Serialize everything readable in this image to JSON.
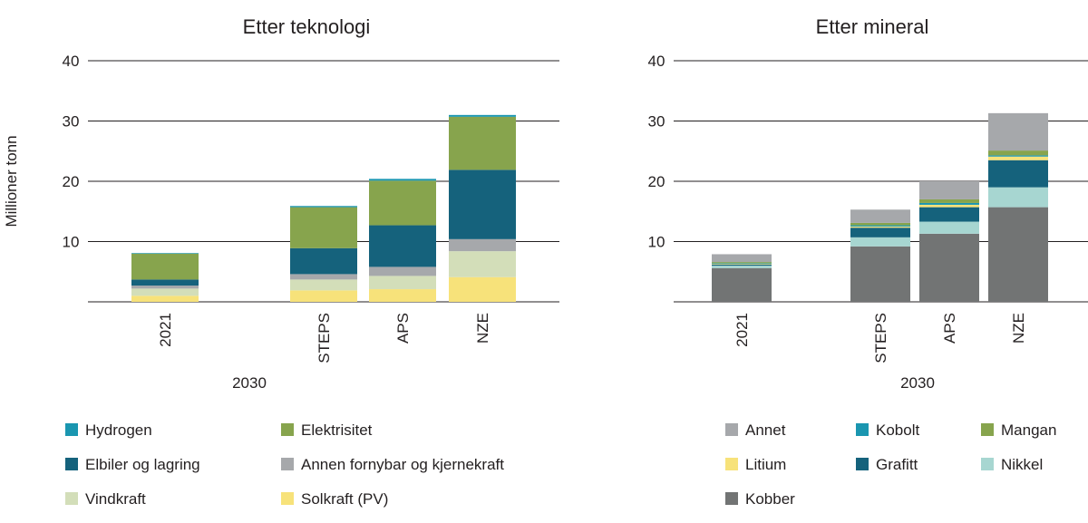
{
  "chart_data": [
    {
      "type": "bar",
      "stacked": true,
      "title": "Etter teknologi",
      "ylabel": "Millioner tonn",
      "yticks": [
        10,
        20,
        30,
        40
      ],
      "ylim": [
        0,
        40
      ],
      "categories": [
        "2021",
        "STEPS",
        "APS",
        "NZE"
      ],
      "group_label": "2030",
      "series": [
        {
          "name": "Solkraft (PV)",
          "color": "#f7e27a",
          "values": [
            1.0,
            1.9,
            2.1,
            4.1
          ]
        },
        {
          "name": "Vindkraft",
          "color": "#d3deb9",
          "values": [
            1.2,
            1.8,
            2.2,
            4.3
          ]
        },
        {
          "name": "Annen fornybar og kjernekraft",
          "color": "#a6a8ab",
          "values": [
            0.5,
            0.9,
            1.5,
            2.0
          ]
        },
        {
          "name": "Elbiler og lagring",
          "color": "#15627c",
          "values": [
            1.0,
            4.3,
            6.9,
            11.5
          ]
        },
        {
          "name": "Elektrisitet",
          "color": "#87a44d",
          "values": [
            4.3,
            6.8,
            7.4,
            8.8
          ]
        },
        {
          "name": "Hydrogen",
          "color": "#1a96b0",
          "values": [
            0.1,
            0.2,
            0.3,
            0.3
          ]
        }
      ],
      "legend": [
        {
          "name": "Hydrogen",
          "color": "#1a96b0"
        },
        {
          "name": "Elektrisitet",
          "color": "#87a44d"
        },
        {
          "name": "Elbiler og lagring",
          "color": "#15627c"
        },
        {
          "name": "Annen fornybar og kjernekraft",
          "color": "#a6a8ab"
        },
        {
          "name": "Vindkraft",
          "color": "#d3deb9"
        },
        {
          "name": "Solkraft (PV)",
          "color": "#f7e27a"
        }
      ]
    },
    {
      "type": "bar",
      "stacked": true,
      "title": "Etter mineral",
      "yticks": [
        10,
        20,
        30,
        40
      ],
      "ylim": [
        0,
        40
      ],
      "categories": [
        "2021",
        "STEPS",
        "APS",
        "NZE"
      ],
      "group_label": "2030",
      "series": [
        {
          "name": "Kobber",
          "color": "#727474",
          "values": [
            5.6,
            9.2,
            11.3,
            15.7
          ]
        },
        {
          "name": "Nikkel",
          "color": "#a7d6d1",
          "values": [
            0.4,
            1.5,
            2.0,
            3.3
          ]
        },
        {
          "name": "Grafitt",
          "color": "#15627c",
          "values": [
            0.2,
            1.6,
            2.4,
            4.5
          ]
        },
        {
          "name": "Litium",
          "color": "#f7e27a",
          "values": [
            0.1,
            0.2,
            0.4,
            0.6
          ]
        },
        {
          "name": "Kobolt",
          "color": "#1a96b0",
          "values": [
            0.1,
            0.2,
            0.3,
            0.2
          ]
        },
        {
          "name": "Mangan",
          "color": "#87a44d",
          "values": [
            0.2,
            0.4,
            0.6,
            0.8
          ]
        },
        {
          "name": "Annet",
          "color": "#a6a8ab",
          "values": [
            1.3,
            2.2,
            3.0,
            6.2
          ]
        }
      ],
      "legend": [
        {
          "name": "Annet",
          "color": "#a6a8ab"
        },
        {
          "name": "Kobolt",
          "color": "#1a96b0"
        },
        {
          "name": "Mangan",
          "color": "#87a44d"
        },
        {
          "name": "Litium",
          "color": "#f7e27a"
        },
        {
          "name": "Grafitt",
          "color": "#15627c"
        },
        {
          "name": "Nikkel",
          "color": "#a7d6d1"
        },
        {
          "name": "Kobber",
          "color": "#727474"
        }
      ]
    }
  ]
}
